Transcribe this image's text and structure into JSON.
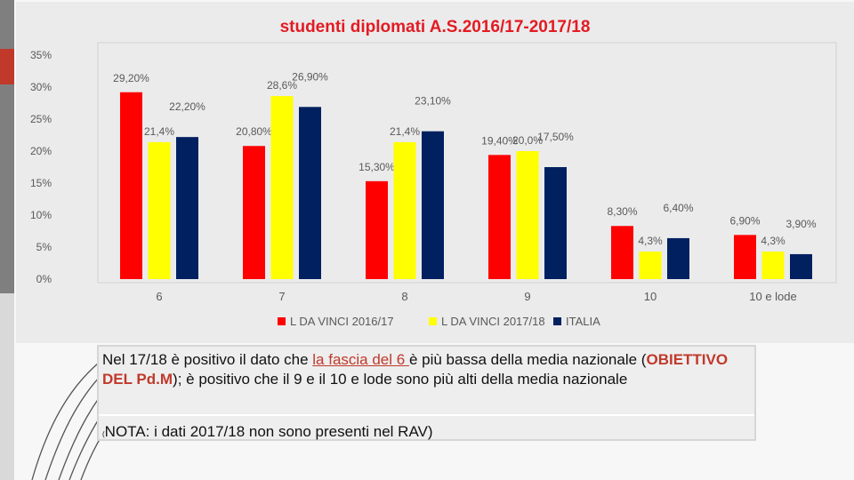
{
  "colors": {
    "series1": "#ff0000",
    "series2": "#ffff00",
    "series3": "#002060",
    "title": "#e31b23",
    "note_highlight": "#c0392b"
  },
  "chart_data": {
    "type": "bar",
    "title": "studenti diplomati A.S.2016/17-2017/18",
    "categories": [
      "6",
      "7",
      "8",
      "9",
      "10",
      "10 e lode"
    ],
    "series": [
      {
        "name": "L DA VINCI 2016/17",
        "values": [
          29.2,
          20.8,
          15.3,
          19.4,
          8.3,
          6.9
        ],
        "labels": [
          "29,20%",
          "20,80%",
          "15,30%",
          "19,40%",
          "8,30%",
          "6,90%"
        ]
      },
      {
        "name": "L DA VINCI 2017/18",
        "values": [
          21.4,
          28.6,
          21.4,
          20.0,
          4.3,
          4.3
        ],
        "labels": [
          "21,4%",
          "28,6%",
          "21,4%",
          "20,0%",
          "4,3%",
          "4,3%"
        ]
      },
      {
        "name": "ITALIA",
        "values": [
          22.2,
          26.9,
          23.1,
          17.5,
          6.4,
          3.9
        ],
        "labels": [
          "22,20%",
          "26,90%",
          "23,10%",
          "17,50%",
          "6,40%",
          "3,90%"
        ]
      }
    ],
    "yticks": [
      "0%",
      "5%",
      "10%",
      "15%",
      "20%",
      "25%",
      "30%",
      "35%"
    ],
    "ylim": [
      0,
      35
    ],
    "xlabel": "",
    "ylabel": "",
    "grid": false,
    "legend": "bottom"
  },
  "note": {
    "line1_a": "Nel 17/18 è positivo il dato che ",
    "line1_link": "la fascia del 6 ",
    "line1_b": "è più bassa della media nazionale (",
    "line1_bold": "OBIETTIVO DEL Pd.M",
    "line1_c": "); è positivo che il 9 e il 10 e lode sono più alti della media nazionale",
    "line2_prefix": "(",
    "line2_text": "NOTA: i dati 2017/18 non sono presenti nel RAV)"
  }
}
